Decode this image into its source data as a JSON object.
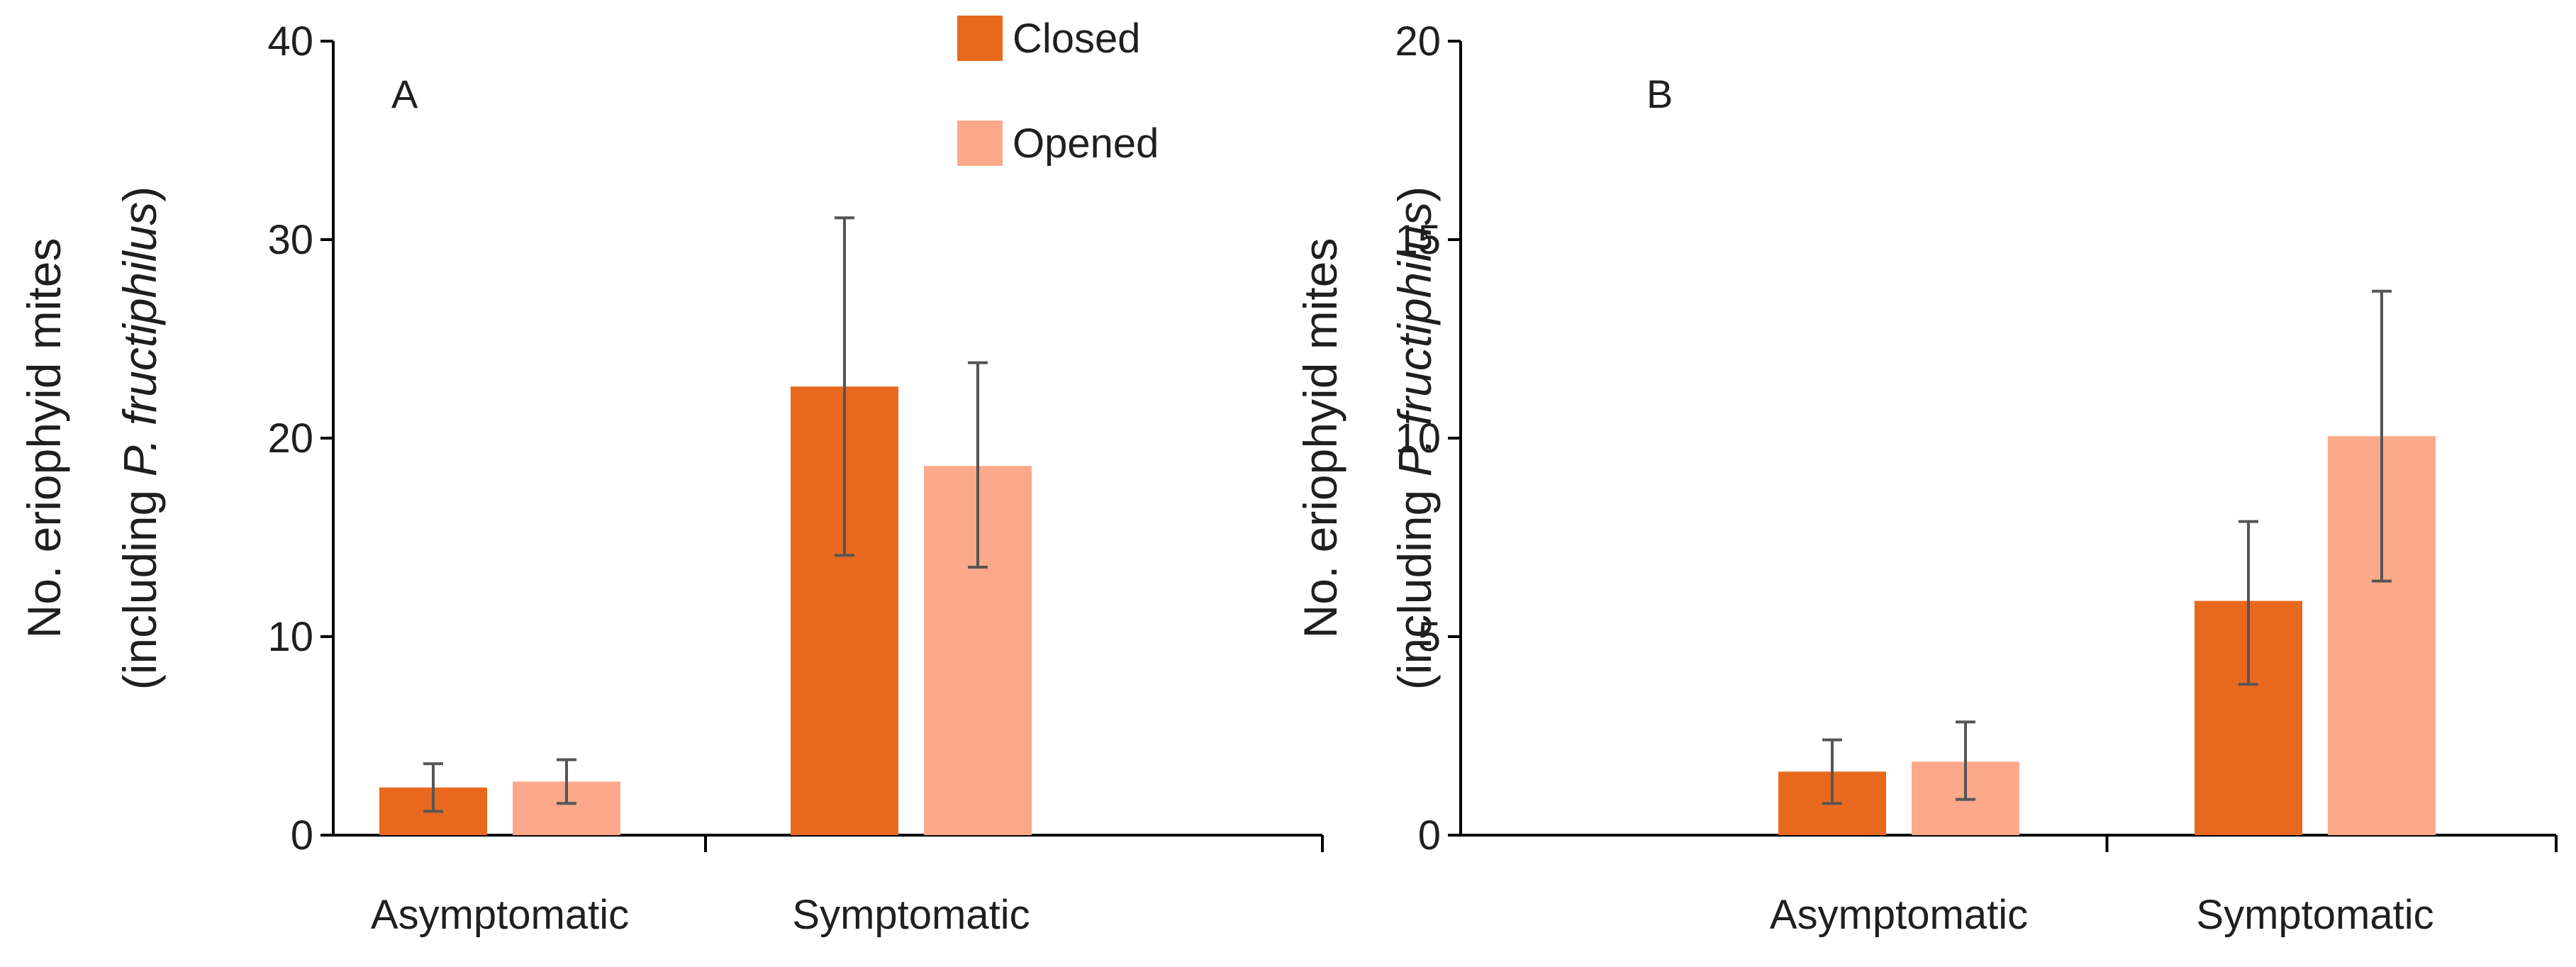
{
  "chart_data": [
    {
      "type": "bar",
      "panel_label": "A",
      "categories": [
        "Asymptomatic",
        "Symptomatic"
      ],
      "ylabel_line1": "No. eriophyid mites",
      "ylabel_line2_prefix": "(including ",
      "ylabel_line2_italic": "P. fructiphilus",
      "ylabel_line2_suffix": ")",
      "ylim": [
        0,
        40
      ],
      "yticks": [
        "0",
        "10",
        "20",
        "30",
        "40"
      ],
      "series": [
        {
          "name": "Closed",
          "color": "#E8691E",
          "values": [
            2.4,
            22.6
          ],
          "error_low": [
            1.2,
            14.1
          ],
          "error_high": [
            3.6,
            31.1
          ]
        },
        {
          "name": "Opened",
          "color": "#FBA98A",
          "values": [
            2.7,
            18.6
          ],
          "error_low": [
            1.6,
            13.5
          ],
          "error_high": [
            3.8,
            23.8
          ]
        }
      ],
      "legend": "top-right",
      "grid": false
    },
    {
      "type": "bar",
      "panel_label": "B",
      "categories": [
        "Asymptomatic",
        "Symptomatic"
      ],
      "ylabel_line1": "No. eriophyid mites",
      "ylabel_line2_prefix": "(including ",
      "ylabel_line2_italic": "P. fructiphilus",
      "ylabel_line2_suffix": ")",
      "ylim": [
        0,
        20
      ],
      "yticks": [
        "0",
        "5",
        "10",
        "15",
        "20"
      ],
      "series": [
        {
          "name": "Closed",
          "color": "#E8691E",
          "values": [
            1.6,
            5.9
          ],
          "error_low": [
            0.8,
            3.8
          ],
          "error_high": [
            2.4,
            7.9
          ]
        },
        {
          "name": "Opened",
          "color": "#FBA98A",
          "values": [
            1.85,
            10.05
          ],
          "error_low": [
            0.9,
            6.4
          ],
          "error_high": [
            2.85,
            13.7
          ]
        }
      ],
      "grid": false
    }
  ]
}
